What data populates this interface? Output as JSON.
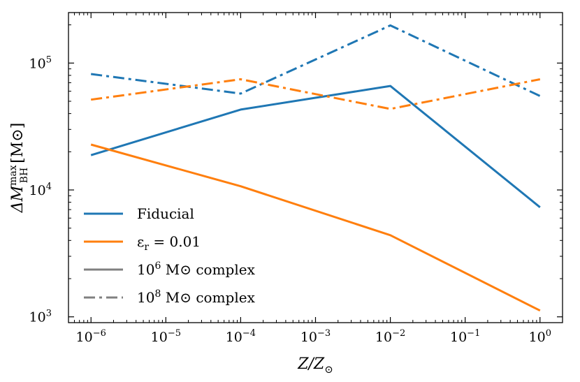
{
  "chart_data": {
    "type": "line",
    "x_scale": "log",
    "y_scale": "log",
    "x": [
      1e-06,
      0.0001,
      0.01,
      1
    ],
    "xlim": [
      5e-07,
      2
    ],
    "ylim": [
      900,
      250000
    ],
    "xlabel": {
      "main": "Z/Z",
      "sub": "⊙"
    },
    "ylabel": {
      "prefix": "ΔM",
      "sup": "max",
      "sub": "BH",
      "unit": "[M⊙]"
    },
    "x_ticks": [
      {
        "value": 1e-06,
        "base": "10",
        "exp": "−6"
      },
      {
        "value": 1e-05,
        "base": "10",
        "exp": "−5"
      },
      {
        "value": 0.0001,
        "base": "10",
        "exp": "−4"
      },
      {
        "value": 0.001,
        "base": "10",
        "exp": "−3"
      },
      {
        "value": 0.01,
        "base": "10",
        "exp": "−2"
      },
      {
        "value": 0.1,
        "base": "10",
        "exp": "−1"
      },
      {
        "value": 1,
        "base": "10",
        "exp": "0"
      }
    ],
    "y_ticks": [
      {
        "value": 1000,
        "base": "10",
        "exp": "3"
      },
      {
        "value": 10000,
        "base": "10",
        "exp": "4"
      },
      {
        "value": 100000,
        "base": "10",
        "exp": "5"
      }
    ],
    "series": [
      {
        "name": "Fiducial, 10^6 M⊙ complex",
        "color": "#1f77b4",
        "dash": "solid",
        "values": [
          18800,
          43000,
          66000,
          7300
        ]
      },
      {
        "name": "Fiducial, 10^8 M⊙ complex",
        "color": "#1f77b4",
        "dash": "dashdot",
        "values": [
          82000,
          57500,
          198000,
          55000
        ]
      },
      {
        "name": "ε_r = 0.01, 10^6 M⊙ complex",
        "color": "#ff7f0e",
        "dash": "solid",
        "values": [
          22800,
          10700,
          4400,
          1120
        ]
      },
      {
        "name": "ε_r = 0.01, 10^8 M⊙ complex",
        "color": "#ff7f0e",
        "dash": "dashdot",
        "values": [
          51500,
          74500,
          43500,
          74500
        ]
      }
    ],
    "legend": {
      "position": "lower-left",
      "entries": [
        {
          "label": "Fiducial",
          "color": "#1f77b4",
          "dash": "solid"
        },
        {
          "label": "ε",
          "label_sub": "r",
          "label_rest": " = 0.01",
          "color": "#ff7f0e",
          "dash": "solid"
        },
        {
          "label": "10",
          "label_sup": "6",
          "label_rest": " M⊙ complex",
          "color": "#808080",
          "dash": "solid"
        },
        {
          "label": "10",
          "label_sup": "8",
          "label_rest": " M⊙ complex",
          "color": "#808080",
          "dash": "dashdot"
        }
      ]
    }
  }
}
